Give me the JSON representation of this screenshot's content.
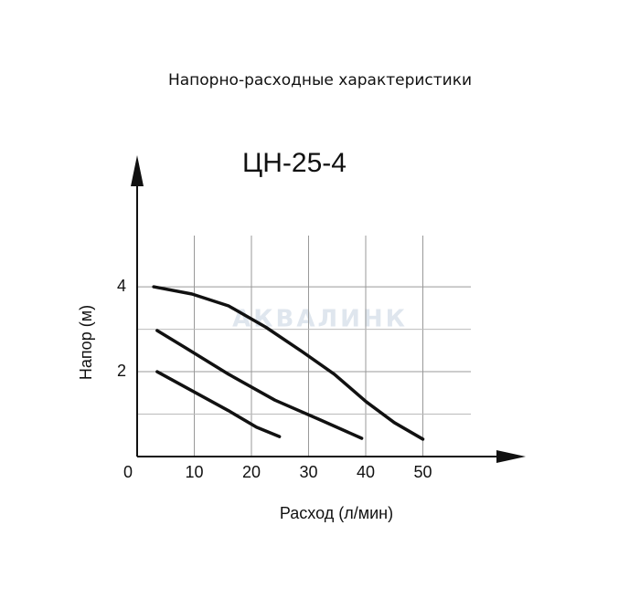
{
  "header": {
    "title": "Напорно-расходные характеристики"
  },
  "watermark": "АКВАЛИНК",
  "chart_data": {
    "type": "line",
    "title": "ЦН-25-4",
    "x_label": "Расход (л/мин)",
    "y_label": "Напор (м)",
    "xlim": [
      0,
      68
    ],
    "ylim": [
      0,
      7.1
    ],
    "xticks": [
      0,
      10,
      20,
      30,
      40,
      50
    ],
    "yticks": [
      2,
      4
    ],
    "grid": true,
    "series": [
      {
        "color": "#111111",
        "x": [
          2.9,
          9.6,
          16,
          22.5,
          28.9,
          34.5,
          40.1,
          45,
          50
        ],
        "values": [
          4.0,
          3.83,
          3.55,
          3.05,
          2.47,
          1.94,
          1.29,
          0.8,
          0.41
        ]
      },
      {
        "color": "#111111",
        "x": [
          3.5,
          9.6,
          16,
          24.1,
          32.1,
          39.3
        ],
        "values": [
          2.97,
          2.47,
          1.94,
          1.33,
          0.86,
          0.43
        ]
      },
      {
        "color": "#111111",
        "x": [
          3.5,
          9.6,
          16,
          20.9,
          24.9
        ],
        "values": [
          2.0,
          1.55,
          1.08,
          0.69,
          0.47
        ]
      }
    ]
  }
}
